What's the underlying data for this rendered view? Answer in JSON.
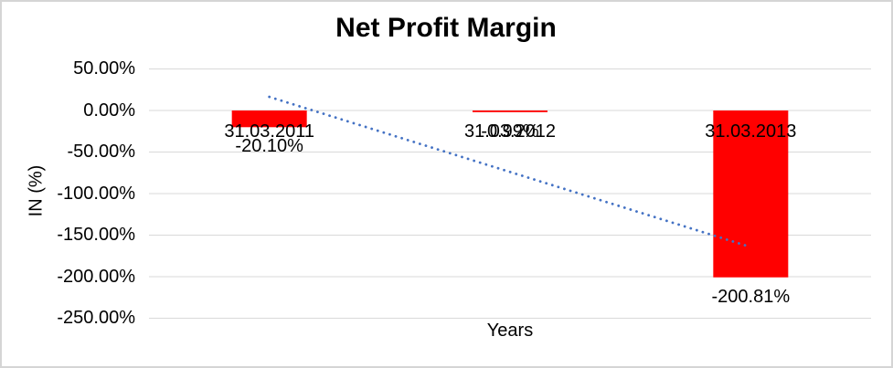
{
  "window": {
    "background": "#FFFFFF",
    "border_color": "#D5D5D5"
  },
  "chart_data": {
    "type": "bar",
    "title": "Net Profit Margin",
    "xlabel": "Years",
    "ylabel": "IN (%)",
    "categories": [
      "31.03.2011",
      "31.03.2012",
      "31.03.2013"
    ],
    "values": [
      -20.1,
      -0.99,
      -200.81
    ],
    "data_labels": [
      "-20.10%",
      "-0.99%",
      "-200.81%"
    ],
    "ytick_values": [
      50,
      0,
      -50,
      -100,
      -150,
      -200,
      -250
    ],
    "ytick_labels": [
      "50.00%",
      "0.00%",
      "-50.00%",
      "-100.00%",
      "-150.00%",
      "-200.00%",
      "-250.00%"
    ],
    "ylim": [
      -250,
      50
    ],
    "grid": true,
    "legend": "none",
    "bar_color": "#FF0000",
    "gridline_color": "#D9D9D9",
    "text_color": "#000000",
    "trendline": {
      "type": "linear",
      "style": "dotted",
      "color": "#4472C4",
      "start_value": 16.39,
      "end_value": -164.36
    }
  }
}
